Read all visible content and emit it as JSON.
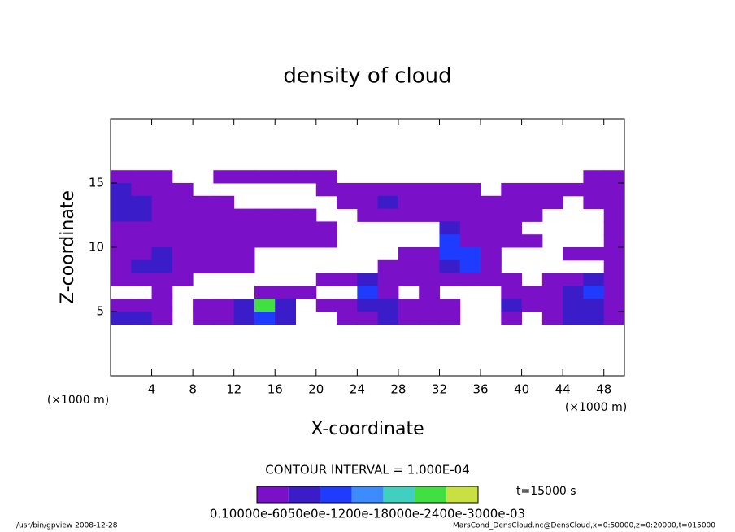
{
  "chart_data": {
    "type": "contour",
    "title": "density of cloud",
    "xlabel": "X-coordinate",
    "ylabel": "Z-coordinate",
    "xunit": "(×1000 m)",
    "yunit": "(×1000 m)",
    "contour_interval": "CONTOUR INTERVAL = 1.000E-04",
    "time_label": "t=15000 s",
    "colorbar_label": "0.10000e-6050e0e-1200e-18000e-2400e-3000e-03",
    "footer_left": "/usr/bin/gpview   2008-12-28",
    "footer_right": "MarsCond_DensCloud.nc@DensCloud,x=0:50000,z=0:20000,t=015000",
    "xlim": [
      0,
      50
    ],
    "ylim": [
      0,
      20
    ],
    "xticks": [
      4,
      8,
      12,
      16,
      20,
      24,
      28,
      32,
      36,
      40,
      44,
      48
    ],
    "yticks": [
      5,
      10,
      15
    ],
    "levels": [
      0.0001,
      0.0002,
      0.0003,
      0.0004,
      0.0005,
      0.0006,
      0.0007
    ],
    "colors": [
      "#7a10c8",
      "#3a1cc8",
      "#1e3cff",
      "#3c8cff",
      "#40d0c0",
      "#40e040",
      "#c8e040"
    ],
    "x": [
      1,
      3,
      5,
      7,
      9,
      11,
      13,
      15,
      17,
      19,
      21,
      23,
      25,
      27,
      29,
      31,
      33,
      35,
      37,
      39,
      41,
      43,
      45,
      47,
      49
    ],
    "y": [
      15.5,
      14.5,
      13.5,
      12.5,
      11.5,
      10.5,
      9.5,
      8.5,
      7.5,
      6.5,
      5.5,
      4.5
    ],
    "z": [
      [
        0.0001,
        0.0001,
        0.0001,
        null,
        null,
        0.0001,
        0.0001,
        0.0001,
        0.0001,
        0.0001,
        0.0001,
        null,
        null,
        null,
        null,
        null,
        null,
        null,
        null,
        null,
        null,
        null,
        null,
        0.0001,
        0.0001
      ],
      [
        0.0002,
        0.0001,
        0.0001,
        0.0001,
        null,
        null,
        null,
        null,
        null,
        null,
        0.0001,
        0.0001,
        0.0001,
        0.0001,
        0.0001,
        0.0001,
        0.0001,
        0.0001,
        null,
        0.0001,
        0.0001,
        0.0001,
        0.0001,
        0.0001,
        0.0001
      ],
      [
        0.0002,
        0.0002,
        0.0001,
        0.0001,
        0.0001,
        0.0001,
        null,
        null,
        null,
        null,
        null,
        0.0001,
        0.0001,
        0.0002,
        0.0001,
        0.0001,
        0.0001,
        0.0001,
        0.0001,
        0.0001,
        0.0001,
        0.0001,
        null,
        0.0001,
        0.0001
      ],
      [
        0.0002,
        0.0002,
        0.0001,
        0.0001,
        0.0001,
        0.0001,
        0.0001,
        0.0001,
        0.0001,
        0.0001,
        null,
        null,
        0.0001,
        0.0001,
        0.0001,
        0.0001,
        0.0001,
        0.0001,
        0.0001,
        0.0001,
        0.0001,
        null,
        null,
        null,
        0.0001
      ],
      [
        0.0001,
        0.0001,
        0.0001,
        0.0001,
        0.0001,
        0.0001,
        0.0001,
        0.0001,
        0.0001,
        0.0001,
        0.0001,
        null,
        null,
        null,
        null,
        null,
        0.0002,
        0.0001,
        0.0001,
        0.0001,
        null,
        null,
        null,
        null,
        0.0001
      ],
      [
        0.0001,
        0.0001,
        0.0001,
        0.0001,
        0.0001,
        0.0001,
        0.0001,
        0.0001,
        0.0001,
        0.0001,
        0.0001,
        null,
        null,
        null,
        null,
        null,
        0.0003,
        0.0001,
        0.0001,
        0.0001,
        0.0001,
        null,
        null,
        null,
        0.0001
      ],
      [
        0.0001,
        0.0001,
        0.0002,
        0.0001,
        0.0001,
        0.0001,
        0.0001,
        null,
        null,
        null,
        null,
        null,
        null,
        null,
        0.0001,
        0.0001,
        0.0003,
        0.0003,
        0.0001,
        null,
        null,
        null,
        0.0001,
        0.0001,
        0.0001
      ],
      [
        0.0001,
        0.0002,
        0.0002,
        0.0001,
        0.0001,
        0.0001,
        0.0001,
        null,
        null,
        null,
        null,
        null,
        null,
        0.0001,
        0.0001,
        0.0001,
        0.0002,
        0.0003,
        0.0001,
        null,
        null,
        null,
        null,
        null,
        0.0001
      ],
      [
        0.0001,
        0.0001,
        0.0001,
        0.0001,
        null,
        null,
        null,
        null,
        null,
        null,
        0.0001,
        0.0001,
        0.0002,
        0.0001,
        0.0001,
        0.0001,
        0.0001,
        0.0001,
        0.0001,
        0.0001,
        null,
        0.0001,
        0.0001,
        0.0002,
        0.0001
      ],
      [
        null,
        null,
        0.0001,
        null,
        null,
        null,
        null,
        0.0001,
        0.0001,
        0.0001,
        null,
        null,
        0.0003,
        0.0001,
        null,
        0.0001,
        null,
        null,
        null,
        0.0001,
        0.0001,
        0.0001,
        0.0002,
        0.0003,
        0.0001
      ],
      [
        0.0001,
        0.0001,
        0.0001,
        null,
        0.0001,
        0.0001,
        0.0002,
        0.0006,
        0.0002,
        null,
        0.0001,
        0.0001,
        0.0002,
        0.0002,
        0.0001,
        0.0001,
        0.0001,
        null,
        null,
        0.0002,
        0.0001,
        0.0001,
        0.0002,
        0.0002,
        0.0001
      ],
      [
        0.0002,
        0.0002,
        0.0001,
        null,
        0.0001,
        0.0001,
        0.0002,
        0.0003,
        0.0002,
        null,
        null,
        0.0001,
        0.0001,
        0.0002,
        0.0001,
        0.0001,
        0.0001,
        null,
        null,
        0.0001,
        null,
        0.0001,
        0.0002,
        0.0002,
        0.0001
      ]
    ]
  }
}
